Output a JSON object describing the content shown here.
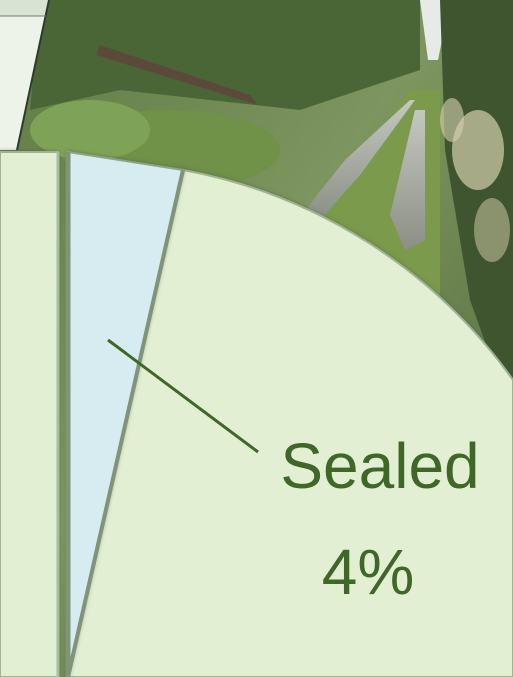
{
  "chart_data": {
    "type": "pie",
    "title": "",
    "slices": [
      {
        "label": "Sealed",
        "value_label": "4%",
        "value": 4
      }
    ],
    "colors": {
      "sealed_slice": "#d6ecf1",
      "other_slices": "#e2efd3",
      "slice_edge": "#8fa389",
      "label_text": "#3f6728",
      "leader_line": "#3f6728"
    }
  },
  "background": {
    "description_icon": "photo-forest-track"
  }
}
